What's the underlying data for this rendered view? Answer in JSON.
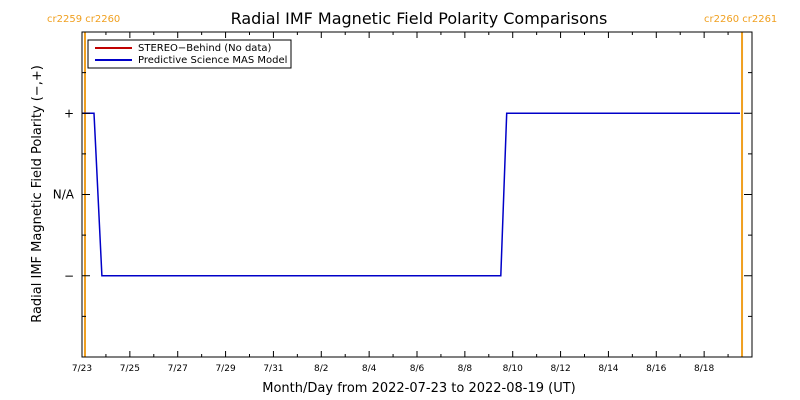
{
  "chart_data": {
    "type": "line",
    "title": "Radial IMF Magnetic Field Polarity Comparisons",
    "xlabel": "Month/Day from 2022-07-23 to 2022-08-19 (UT)",
    "ylabel": "Radial IMF Magnetic Field Polarity (−,+)",
    "x_range": [
      "2022-07-23",
      "2022-08-20"
    ],
    "x_ticks": [
      {
        "date": "2022-07-23",
        "label": "7/23"
      },
      {
        "date": "2022-07-25",
        "label": "7/25"
      },
      {
        "date": "2022-07-27",
        "label": "7/27"
      },
      {
        "date": "2022-07-29",
        "label": "7/29"
      },
      {
        "date": "2022-07-31",
        "label": "7/31"
      },
      {
        "date": "2022-08-02",
        "label": "8/2"
      },
      {
        "date": "2022-08-04",
        "label": "8/4"
      },
      {
        "date": "2022-08-06",
        "label": "8/6"
      },
      {
        "date": "2022-08-08",
        "label": "8/8"
      },
      {
        "date": "2022-08-10",
        "label": "8/10"
      },
      {
        "date": "2022-08-12",
        "label": "8/12"
      },
      {
        "date": "2022-08-14",
        "label": "8/14"
      },
      {
        "date": "2022-08-16",
        "label": "8/16"
      },
      {
        "date": "2022-08-18",
        "label": "8/18"
      }
    ],
    "y_range": [
      -2,
      2
    ],
    "y_ticks": [
      {
        "value": 1,
        "label": "+"
      },
      {
        "value": 0,
        "label": "N/A"
      },
      {
        "value": -1,
        "label": "−"
      }
    ],
    "legend": {
      "position": "top-left",
      "entries": [
        {
          "label": "STEREO−Behind (No data)",
          "color": "#c00000"
        },
        {
          "label": "Predictive Science MAS Model",
          "color": "#0000c8"
        }
      ]
    },
    "carrington_markers": [
      {
        "date": "2022-07-23T03:00",
        "label": "cr2259 cr2260",
        "side": "left"
      },
      {
        "date": "2022-08-19T14:00",
        "label": "cr2260 cr2261",
        "side": "right"
      }
    ],
    "marker_color": "#f0a020",
    "series": [
      {
        "name": "Predictive Science MAS Model",
        "color": "#0000c8",
        "points": [
          {
            "date": "2022-07-23T00:00",
            "value": 1
          },
          {
            "date": "2022-07-23T12:00",
            "value": 1
          },
          {
            "date": "2022-07-23T14:00",
            "value": 0.5
          },
          {
            "date": "2022-07-23T20:00",
            "value": -1
          },
          {
            "date": "2022-08-09T12:00",
            "value": -1
          },
          {
            "date": "2022-08-09T18:00",
            "value": 1
          },
          {
            "date": "2022-08-19T12:00",
            "value": 1
          }
        ]
      }
    ]
  }
}
